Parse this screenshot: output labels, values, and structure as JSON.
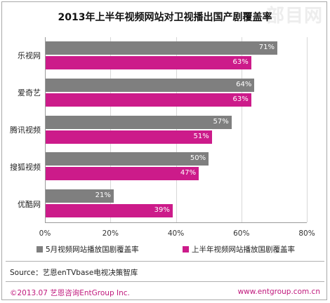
{
  "watermark": "部目网",
  "chart_data": {
    "type": "bar",
    "orientation": "horizontal",
    "title": "2013年上半年视频网站对卫视播出国产剧覆盖率",
    "categories": [
      "乐视网",
      "爱奇艺",
      "腾讯视频",
      "搜狐视频",
      "优酷网"
    ],
    "series": [
      {
        "name": "5月视频网站播放国剧覆盖率",
        "color": "#7f7f7f",
        "values": [
          71,
          64,
          57,
          50,
          21
        ]
      },
      {
        "name": "上半年视频网站播放国剧覆盖率",
        "color": "#cc1b8a",
        "values": [
          63,
          63,
          51,
          47,
          39
        ]
      }
    ],
    "xlim": [
      0,
      80
    ],
    "ticks": [
      0,
      20,
      40,
      60,
      80
    ],
    "value_suffix": "%",
    "legend_position": "bottom",
    "grid": true
  },
  "source": "Source：艺恩enTVbase电视决策智库",
  "footer": {
    "copyright": "©2013.07  艺恩咨询EntGroup Inc.",
    "url": "www.entgroup.com.cn"
  }
}
